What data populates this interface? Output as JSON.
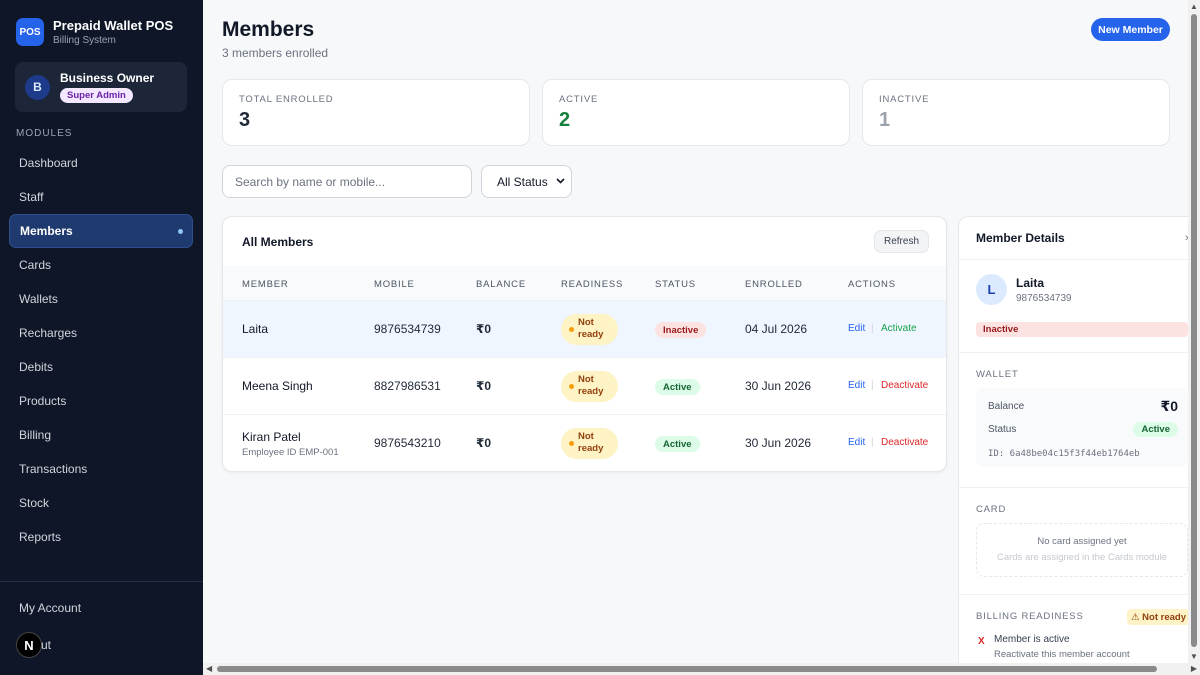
{
  "sidebar": {
    "logo": "POS",
    "app_title": "Prepaid Wallet POS",
    "app_subtitle": "Billing System",
    "user_initial": "B",
    "user_name": "Business Owner",
    "user_role": "Super Admin",
    "section_label": "MODULES",
    "items": [
      {
        "label": "Dashboard"
      },
      {
        "label": "Staff"
      },
      {
        "label": "Members",
        "active": true
      },
      {
        "label": "Cards"
      },
      {
        "label": "Wallets"
      },
      {
        "label": "Recharges"
      },
      {
        "label": "Debits"
      },
      {
        "label": "Products"
      },
      {
        "label": "Billing"
      },
      {
        "label": "Transactions"
      },
      {
        "label": "Stock"
      },
      {
        "label": "Reports"
      }
    ],
    "account_label": "My Account",
    "nextjs_badge": "N",
    "logout_label": "ut"
  },
  "header": {
    "title": "Members",
    "subtitle": "3 members enrolled",
    "new_button": "New Member"
  },
  "stats": [
    {
      "label": "TOTAL ENROLLED",
      "value": "3",
      "color": "#1f2937"
    },
    {
      "label": "ACTIVE",
      "value": "2",
      "color": "#15803d"
    },
    {
      "label": "INACTIVE",
      "value": "1",
      "color": "#9ca3af"
    }
  ],
  "filters": {
    "search_placeholder": "Search by name or mobile...",
    "status_value": "All Status"
  },
  "table": {
    "title": "All Members",
    "refresh_label": "Refresh",
    "columns": [
      "MEMBER",
      "MOBILE",
      "BALANCE",
      "READINESS",
      "STATUS",
      "ENROLLED",
      "ACTIONS"
    ],
    "rows": [
      {
        "name": "Laita",
        "sub": "",
        "mobile": "9876534739",
        "balance": "₹0",
        "readiness_1": "Not",
        "readiness_2": "ready",
        "status": "Inactive",
        "enrolled": "04 Jul 2026",
        "edit": "Edit",
        "sep": "|",
        "toggle": "Activate",
        "selected": true
      },
      {
        "name": "Meena Singh",
        "sub": "",
        "mobile": "8827986531",
        "balance": "₹0",
        "readiness_1": "Not",
        "readiness_2": "ready",
        "status": "Active",
        "enrolled": "30 Jun 2026",
        "edit": "Edit",
        "sep": "|",
        "toggle": "Deactivate",
        "selected": false
      },
      {
        "name": "Kiran Patel",
        "sub": "Employee ID EMP-001",
        "mobile": "9876543210",
        "balance": "₹0",
        "readiness_1": "Not",
        "readiness_2": "ready",
        "status": "Active",
        "enrolled": "30 Jun 2026",
        "edit": "Edit",
        "sep": "|",
        "toggle": "Deactivate",
        "selected": false
      }
    ]
  },
  "details": {
    "title": "Member Details",
    "close_icon": "›",
    "initial": "L",
    "name": "Laita",
    "mobile": "9876534739",
    "status": "Inactive",
    "wallet_label": "WALLET",
    "balance_label": "Balance",
    "balance_value": "₹0",
    "status_label": "Status",
    "wallet_status": "Active",
    "wallet_id": "ID: 6a48be04c15f3f44eb1764eb",
    "card_label": "CARD",
    "card_empty": "No card assigned yet",
    "card_hint": "Cards are assigned in the Cards module",
    "readiness_label": "BILLING READINESS",
    "readiness_badge": "⚠ Not ready",
    "check_icon": "X",
    "check_title": "Member is active",
    "check_hint": "Reactivate this member account"
  },
  "colors": {
    "sidebar_bg": "#0e1628",
    "accent": "#2563eb",
    "active_green": "#15803d",
    "danger_red": "#dc2626"
  }
}
